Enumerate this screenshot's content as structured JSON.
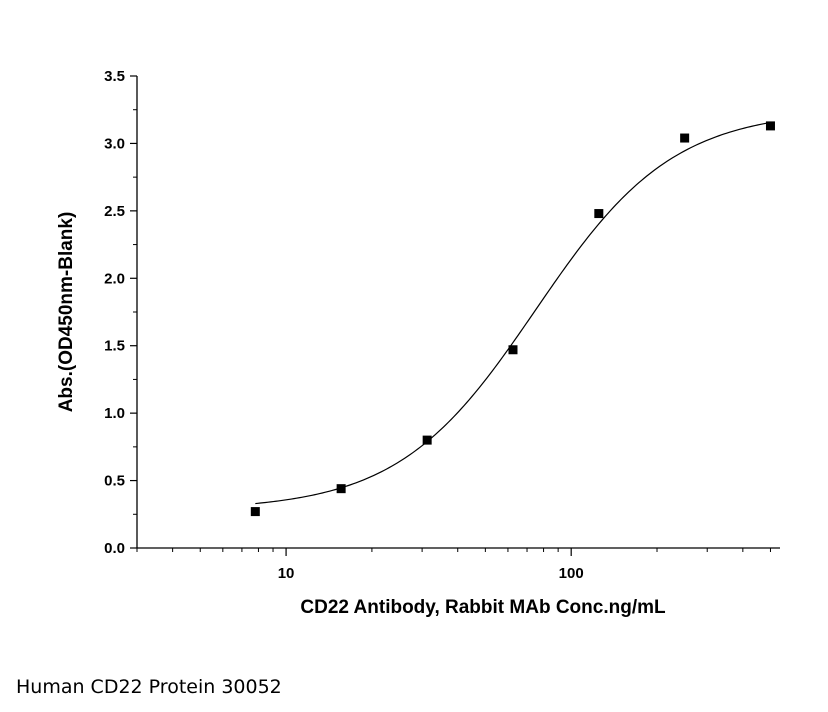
{
  "chart_data": {
    "type": "scatter",
    "xlabel": "CD22 Antibody, Rabbit MAb Conc.ng/mL",
    "ylabel": "Abs.(OD450nm-Blank)",
    "x_scale": "log",
    "xlim": [
      3,
      540
    ],
    "ylim": [
      0,
      3.5
    ],
    "x_ticks": [
      10,
      100
    ],
    "x_tick_labels": [
      "10",
      "100"
    ],
    "y_ticks": [
      0.0,
      0.5,
      1.0,
      1.5,
      2.0,
      2.5,
      3.0,
      3.5
    ],
    "y_tick_labels": [
      "0.0",
      "0.5",
      "1.0",
      "1.5",
      "2.0",
      "2.5",
      "3.0",
      "3.5"
    ],
    "grid": false,
    "series": [
      {
        "x": [
          7.8,
          15.6,
          31.25,
          62.5,
          125,
          250,
          500
        ],
        "y": [
          0.27,
          0.44,
          0.8,
          1.47,
          2.48,
          3.04,
          3.13
        ],
        "marker": "square",
        "color": "#000000"
      }
    ],
    "fit_curve": {
      "model": "4PL",
      "bottom": 0.28,
      "top": 3.25,
      "ec50": 75,
      "hill": 1.8,
      "color": "#000000"
    }
  },
  "caption": "Human CD22 Protein 30052"
}
